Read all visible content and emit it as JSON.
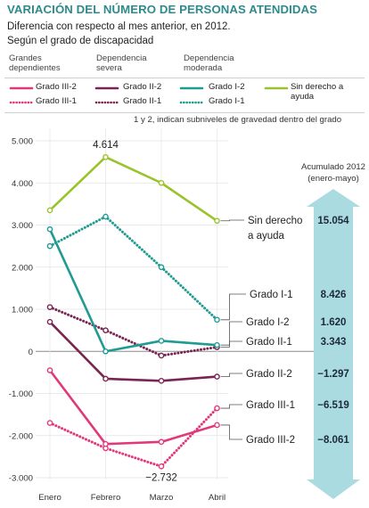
{
  "header": {
    "title": "VARIACIÓN DEL NÚMERO DE PERSONAS ATENDIDAS",
    "subtitle1": "Diferencia con respecto al mes anterior, en 2012.",
    "subtitle2": "Según el grado de discapacidad"
  },
  "legend": {
    "groups": [
      "Grandes dependientes",
      "Dependencia severa",
      "Dependencia moderada"
    ],
    "note": "1 y 2, indican subniveles de gravedad dentro del grado"
  },
  "colors": {
    "grado_III": "#e2377a",
    "grado_II": "#7a2452",
    "grado_I": "#1f9b93",
    "sin_derecho": "#9bc22b",
    "accumulated_band": "#a9dbe0",
    "title": "#2f8a8c"
  },
  "accumulated": {
    "heading1": "Acumulado 2012",
    "heading2": "(enero-mayo)"
  },
  "chart_data": {
    "type": "line",
    "title": "VARIACIÓN DEL NÚMERO DE PERSONAS ATENDIDAS",
    "xlabel": "",
    "ylabel": "",
    "categories": [
      "Enero",
      "Febrero",
      "Marzo",
      "Abril"
    ],
    "ylim": [
      -3000,
      5000
    ],
    "yticks": [
      5000,
      4000,
      3000,
      2000,
      1000,
      0,
      -1000,
      -2000,
      -3000
    ],
    "ytick_labels": [
      "5.000",
      "4.000",
      "3.000",
      "2.000",
      "1.000",
      "0",
      "-1.000",
      "-2.000",
      "-3.000"
    ],
    "grid": true,
    "annotations": [
      "4.614",
      "−2.732"
    ],
    "series": [
      {
        "name": "Sin derecho a ayuda",
        "legend_label": "Sin derecho a ayuda",
        "label1": "Sin derecho",
        "label2": "a ayuda",
        "values": [
          3350,
          4614,
          4000,
          3100
        ],
        "color": "#9bc22b",
        "style": "solid",
        "total": "15.054"
      },
      {
        "name": "Grado I-1",
        "legend_label": "Grado I-1",
        "values": [
          2500,
          3200,
          2000,
          750
        ],
        "color": "#1f9b93",
        "style": "dotted",
        "total": "8.426"
      },
      {
        "name": "Grado I-2",
        "legend_label": "Grado I-2",
        "values": [
          2900,
          0,
          250,
          150
        ],
        "color": "#1f9b93",
        "style": "solid",
        "total": "1.620"
      },
      {
        "name": "Grado II-1",
        "legend_label": "Grado II-1",
        "values": [
          1050,
          500,
          -100,
          100
        ],
        "color": "#7a2452",
        "style": "dotted",
        "total": "3.343"
      },
      {
        "name": "Grado II-2",
        "legend_label": "Grado II-2",
        "values": [
          700,
          -650,
          -700,
          -600
        ],
        "color": "#7a2452",
        "style": "solid",
        "total": "−1.297"
      },
      {
        "name": "Grado III-1",
        "legend_label": "Grado III-1",
        "values": [
          -1700,
          -2300,
          -2732,
          -1350
        ],
        "color": "#e2377a",
        "style": "dotted",
        "total": "−6.519"
      },
      {
        "name": "Grado III-2",
        "legend_label": "Grado III-2",
        "values": [
          -450,
          -2200,
          -2150,
          -1750
        ],
        "color": "#e2377a",
        "style": "solid",
        "total": "−8.061"
      }
    ]
  }
}
